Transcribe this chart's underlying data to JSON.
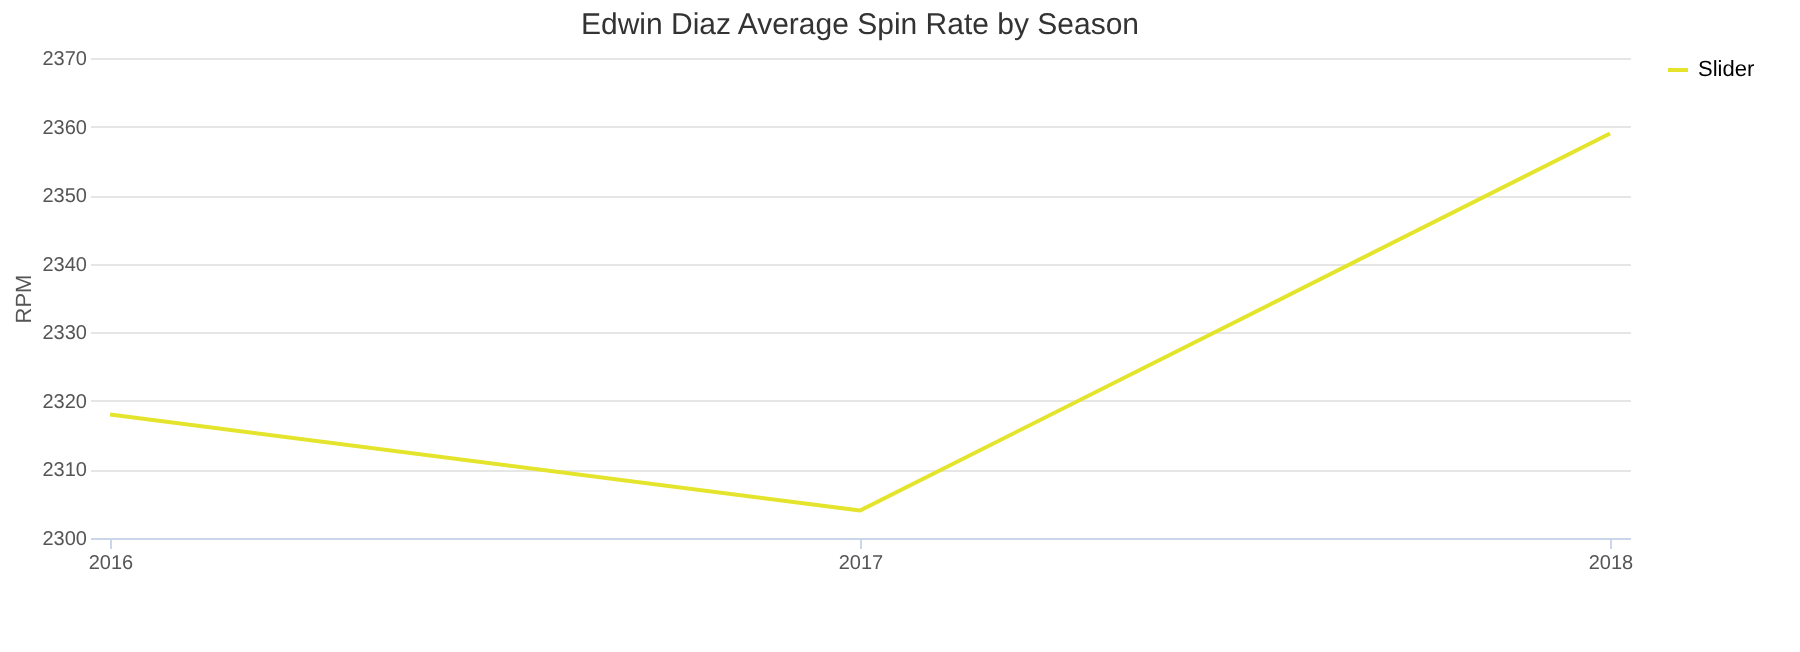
{
  "chart_data": {
    "type": "line",
    "title": "Edwin Diaz Average Spin Rate by Season",
    "ylabel": "RPM",
    "categories": [
      "2016",
      "2017",
      "2018"
    ],
    "series": [
      {
        "name": "Slider",
        "color": "#e4e42c",
        "values": [
          2318,
          2304,
          2359
        ]
      }
    ],
    "ylim": [
      2300,
      2370
    ],
    "yticks": [
      2300,
      2310,
      2320,
      2330,
      2340,
      2350,
      2360,
      2370
    ],
    "grid": "y",
    "legend": "right",
    "marker": "none",
    "line_style": "solid"
  }
}
